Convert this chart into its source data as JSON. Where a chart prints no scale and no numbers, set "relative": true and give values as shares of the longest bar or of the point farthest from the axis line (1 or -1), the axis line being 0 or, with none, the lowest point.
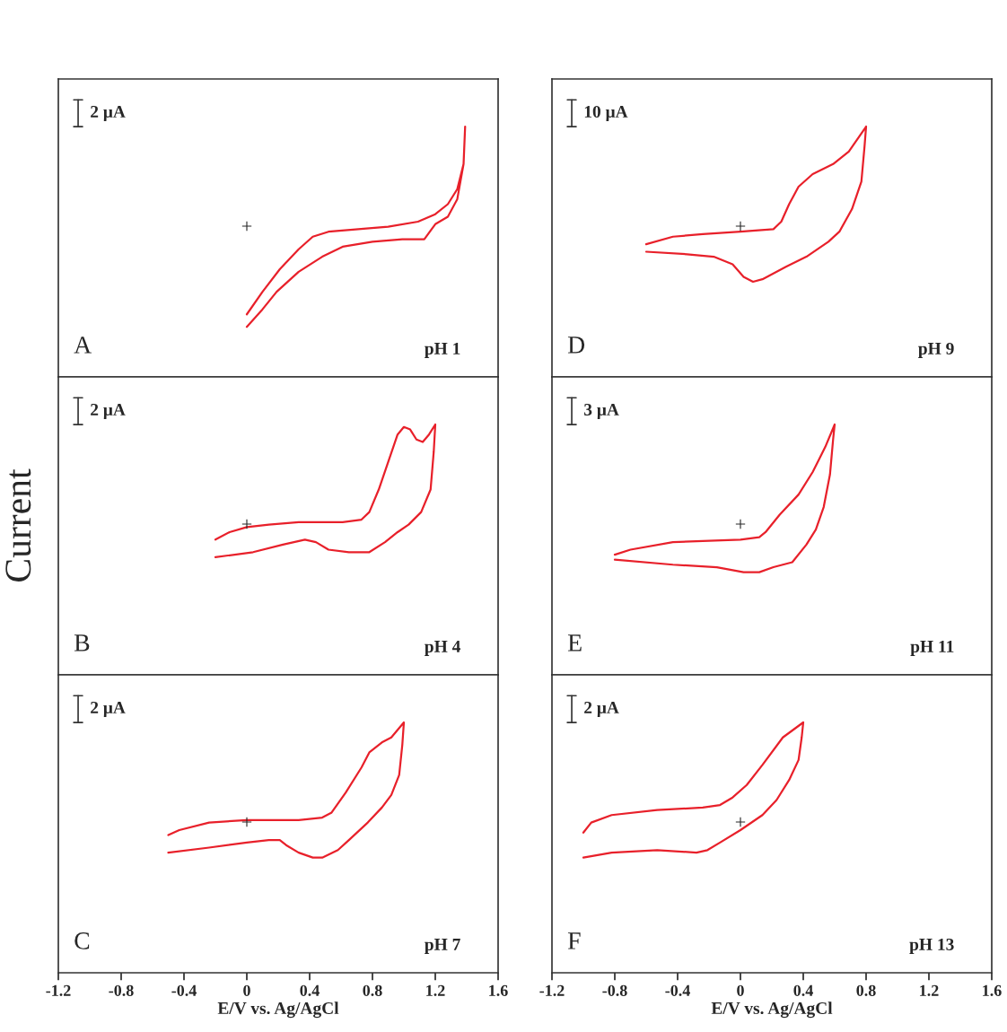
{
  "chart_data": [
    {
      "type": "line",
      "relative": true,
      "xlim": [
        -1.2,
        1.6
      ],
      "xticks": [
        -1.2,
        -0.8,
        -0.4,
        0,
        0.4,
        0.8,
        1.2,
        1.6
      ],
      "tick_labels": false,
      "series": [
        {
          "color": "#e8202a",
          "x": [
            0.0,
            0.1,
            0.21,
            0.33,
            0.42,
            0.52,
            0.71,
            0.9,
            1.09,
            1.2,
            1.28,
            1.34,
            1.38,
            1.39,
            1.38,
            1.34,
            1.28,
            1.2,
            1.13,
            0.99,
            0.8,
            0.61,
            0.48,
            0.33,
            0.19,
            0.1,
            0.0
          ],
          "values": [
            0.25,
            0.34,
            0.43,
            0.51,
            0.56,
            0.58,
            0.59,
            0.6,
            0.62,
            0.65,
            0.69,
            0.75,
            0.85,
            1,
            0.85,
            0.71,
            0.64,
            0.61,
            0.55,
            0.55,
            0.54,
            0.52,
            0.48,
            0.42,
            0.34,
            0.27,
            0.2
          ]
        }
      ],
      "annotations": [
        "2 μA",
        "A",
        "pH 1",
        "+"
      ]
    },
    {
      "type": "line",
      "relative": true,
      "xlim": [
        -1.2,
        1.6
      ],
      "xticks": [
        -1.2,
        -0.8,
        -0.4,
        0,
        0.4,
        0.8,
        1.2,
        1.6
      ],
      "tick_labels": false,
      "ylabel": "Current",
      "series": [
        {
          "color": "#e8202a",
          "x": [
            -0.2,
            -0.11,
            0,
            0.14,
            0.33,
            0.61,
            0.73,
            0.78,
            0.84,
            0.9,
            0.96,
            1.0,
            1.04,
            1.08,
            1.12,
            1.16,
            1.2,
            1.19,
            1.17,
            1.11,
            1.03,
            0.96,
            0.88,
            0.78,
            0.65,
            0.52,
            0.44,
            0.37,
            0.23,
            0.04,
            -0.2
          ],
          "values": [
            0.54,
            0.57,
            0.59,
            0.6,
            0.61,
            0.61,
            0.62,
            0.65,
            0.74,
            0.85,
            0.96,
            0.99,
            0.98,
            0.94,
            0.93,
            0.96,
            1,
            0.89,
            0.74,
            0.65,
            0.6,
            0.57,
            0.53,
            0.49,
            0.49,
            0.5,
            0.53,
            0.54,
            0.52,
            0.49,
            0.47
          ]
        }
      ],
      "annotations": [
        "2 μA",
        "B",
        "pH 4",
        "+"
      ]
    },
    {
      "type": "line",
      "relative": true,
      "xlim": [
        -1.2,
        1.6
      ],
      "xticks": [
        -1.2,
        -0.8,
        -0.4,
        0,
        0.4,
        0.8,
        1.2,
        1.6
      ],
      "tick_labels": "x",
      "xlabel": "E/V vs. Ag/AgCl",
      "series": [
        {
          "color": "#e8202a",
          "x": [
            -0.5,
            -0.43,
            -0.24,
            0,
            0.33,
            0.48,
            0.54,
            0.63,
            0.73,
            0.78,
            0.86,
            0.92,
            1.0,
            0.99,
            0.97,
            0.92,
            0.86,
            0.77,
            0.65,
            0.58,
            0.48,
            0.42,
            0.33,
            0.25,
            0.21,
            0.14,
            0,
            -0.24,
            -0.5
          ],
          "values": [
            0.55,
            0.57,
            0.6,
            0.61,
            0.61,
            0.62,
            0.64,
            0.72,
            0.82,
            0.88,
            0.92,
            0.94,
            1,
            0.91,
            0.79,
            0.71,
            0.66,
            0.6,
            0.53,
            0.49,
            0.46,
            0.46,
            0.48,
            0.51,
            0.53,
            0.53,
            0.52,
            0.5,
            0.48
          ]
        }
      ],
      "annotations": [
        "2 μA",
        "C",
        "pH 7",
        "+"
      ]
    },
    {
      "type": "line",
      "relative": true,
      "xlim": [
        -1.2,
        1.6
      ],
      "xticks": [
        -1.2,
        -0.8,
        -0.4,
        0,
        0.4,
        0.8,
        1.2,
        1.6
      ],
      "tick_labels": false,
      "series": [
        {
          "color": "#e8202a",
          "x": [
            -0.6,
            -0.43,
            -0.24,
            0,
            0.21,
            0.26,
            0.31,
            0.37,
            0.46,
            0.59,
            0.69,
            0.8,
            0.79,
            0.77,
            0.71,
            0.63,
            0.56,
            0.42,
            0.29,
            0.14,
            0.08,
            0.02,
            -0.05,
            -0.17,
            -0.34,
            -0.6
          ],
          "values": [
            0.53,
            0.56,
            0.57,
            0.58,
            0.59,
            0.62,
            0.69,
            0.76,
            0.81,
            0.85,
            0.9,
            1,
            0.92,
            0.78,
            0.67,
            0.58,
            0.54,
            0.48,
            0.44,
            0.39,
            0.38,
            0.4,
            0.45,
            0.48,
            0.49,
            0.5
          ]
        }
      ],
      "annotations": [
        "10 μA",
        "D",
        "pH 9",
        "+"
      ]
    },
    {
      "type": "line",
      "relative": true,
      "xlim": [
        -1.2,
        1.6
      ],
      "xticks": [
        -1.2,
        -0.8,
        -0.4,
        0,
        0.4,
        0.8,
        1.2,
        1.6
      ],
      "tick_labels": false,
      "series": [
        {
          "color": "#e8202a",
          "x": [
            -0.8,
            -0.7,
            -0.43,
            0,
            0.12,
            0.16,
            0.25,
            0.37,
            0.46,
            0.54,
            0.6,
            0.59,
            0.57,
            0.53,
            0.48,
            0.42,
            0.33,
            0.21,
            0.12,
            0.02,
            -0.15,
            -0.43,
            -0.8
          ],
          "values": [
            0.48,
            0.5,
            0.53,
            0.54,
            0.55,
            0.57,
            0.64,
            0.72,
            0.81,
            0.91,
            1,
            0.94,
            0.8,
            0.67,
            0.58,
            0.52,
            0.45,
            0.43,
            0.41,
            0.41,
            0.43,
            0.44,
            0.46
          ]
        }
      ],
      "annotations": [
        "3 μA",
        "E",
        "pH 11",
        "+"
      ]
    },
    {
      "type": "line",
      "relative": true,
      "xlim": [
        -1.2,
        1.6
      ],
      "xticks": [
        -1.2,
        -0.8,
        -0.4,
        0,
        0.4,
        0.8,
        1.2,
        1.6
      ],
      "tick_labels": "x",
      "xlabel": "E/V vs. Ag/AgCl",
      "series": [
        {
          "color": "#e8202a",
          "x": [
            -1.0,
            -0.95,
            -0.82,
            -0.53,
            -0.24,
            -0.13,
            -0.05,
            0.04,
            0.14,
            0.27,
            0.4,
            0.39,
            0.37,
            0.31,
            0.23,
            0.14,
            0,
            -0.13,
            -0.21,
            -0.28,
            -0.53,
            -0.82,
            -1.0
          ],
          "values": [
            0.56,
            0.6,
            0.63,
            0.65,
            0.66,
            0.67,
            0.7,
            0.75,
            0.83,
            0.94,
            1,
            0.94,
            0.85,
            0.77,
            0.69,
            0.63,
            0.57,
            0.52,
            0.49,
            0.48,
            0.49,
            0.48,
            0.46
          ]
        }
      ],
      "annotations": [
        "2 μA",
        "F",
        "pH 13",
        "+"
      ]
    }
  ]
}
